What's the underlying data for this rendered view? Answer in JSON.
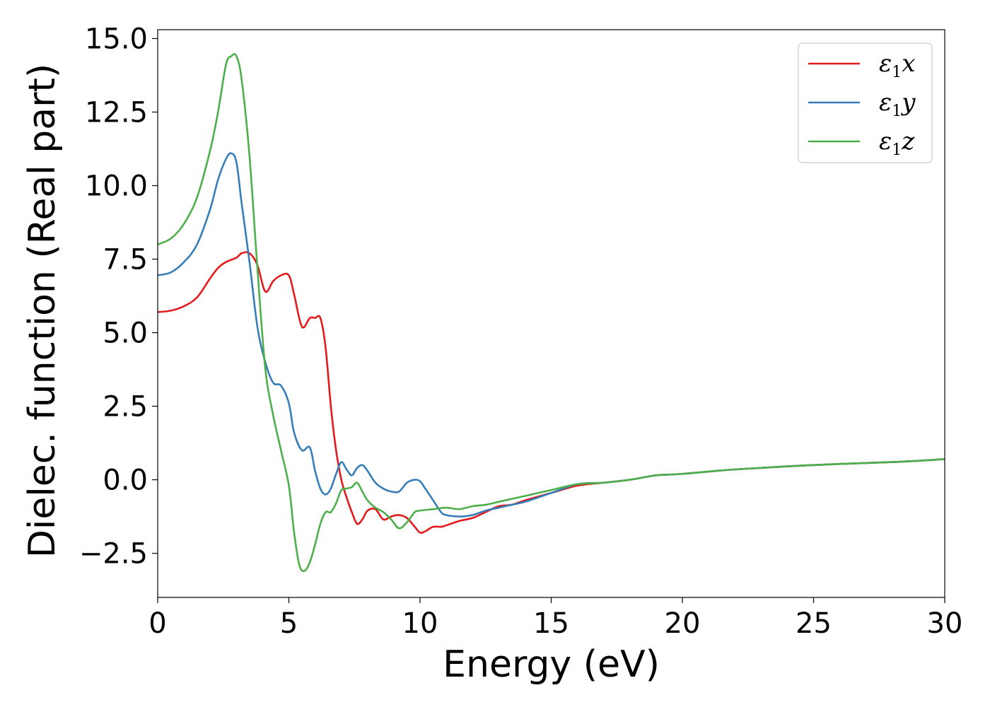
{
  "chart_data": {
    "type": "line",
    "xlabel": "Energy (eV)",
    "ylabel": "Dielec. function (Real part)",
    "xlim": [
      0,
      30
    ],
    "ylim": [
      -4.0,
      15.3
    ],
    "xticks": [
      0,
      5,
      10,
      15,
      20,
      25,
      30
    ],
    "xtick_labels": [
      "0",
      "5",
      "10",
      "15",
      "20",
      "25",
      "30"
    ],
    "yticks": [
      -2.5,
      0.0,
      2.5,
      5.0,
      7.5,
      10.0,
      12.5,
      15.0
    ],
    "ytick_labels": [
      "−2.5",
      "0.0",
      "2.5",
      "5.0",
      "7.5",
      "10.0",
      "12.5",
      "15.0"
    ],
    "grid": false,
    "legend_position": "top-right",
    "series": [
      {
        "name": "ε1x",
        "legend_main": "ε",
        "legend_sub": "1",
        "legend_tail": "x",
        "color": "#e41a1c",
        "x": [
          0,
          0.5,
          1.0,
          1.5,
          2.0,
          2.3,
          2.6,
          3.0,
          3.2,
          3.5,
          3.8,
          4.1,
          4.4,
          4.7,
          5.0,
          5.2,
          5.5,
          5.8,
          6.0,
          6.2,
          6.4,
          6.6,
          6.8,
          7.0,
          7.2,
          7.4,
          7.6,
          7.8,
          8.0,
          8.3,
          8.6,
          8.9,
          9.2,
          9.5,
          9.8,
          10.0,
          10.2,
          10.5,
          10.8,
          11.0,
          11.5,
          12.0,
          12.5,
          13.0,
          13.5,
          14.0,
          15.0,
          16.0,
          17.0,
          18.0,
          19.0,
          20.0,
          22.0,
          25.0,
          28.0,
          30.0
        ],
        "y": [
          5.7,
          5.75,
          5.9,
          6.2,
          6.85,
          7.2,
          7.4,
          7.55,
          7.7,
          7.7,
          7.3,
          6.4,
          6.75,
          6.95,
          6.95,
          6.3,
          5.2,
          5.5,
          5.5,
          5.5,
          4.5,
          2.5,
          1.0,
          0.0,
          -0.6,
          -1.1,
          -1.5,
          -1.35,
          -1.05,
          -1.0,
          -1.35,
          -1.25,
          -1.2,
          -1.3,
          -1.6,
          -1.8,
          -1.75,
          -1.6,
          -1.6,
          -1.55,
          -1.4,
          -1.3,
          -1.1,
          -0.9,
          -0.85,
          -0.7,
          -0.45,
          -0.2,
          -0.1,
          0.0,
          0.15,
          0.2,
          0.35,
          0.5,
          0.6,
          0.7
        ]
      },
      {
        "name": "ε1y",
        "legend_main": "ε",
        "legend_sub": "1",
        "legend_tail": "y",
        "color": "#377eb8",
        "x": [
          0,
          0.5,
          1.0,
          1.5,
          2.0,
          2.3,
          2.6,
          2.8,
          3.0,
          3.2,
          3.5,
          3.8,
          4.1,
          4.4,
          4.7,
          5.0,
          5.2,
          5.5,
          5.8,
          6.0,
          6.2,
          6.4,
          6.6,
          6.8,
          7.0,
          7.2,
          7.4,
          7.6,
          7.8,
          8.0,
          8.3,
          8.6,
          8.9,
          9.2,
          9.5,
          9.8,
          10.0,
          10.2,
          10.5,
          10.8,
          11.0,
          11.5,
          12.0,
          12.5,
          13.0,
          13.5,
          14.0,
          15.0,
          16.0,
          17.0,
          18.0,
          19.0,
          20.0,
          22.0,
          25.0,
          28.0,
          30.0
        ],
        "y": [
          6.95,
          7.05,
          7.4,
          8.0,
          9.2,
          10.2,
          10.9,
          11.1,
          10.8,
          9.4,
          7.4,
          5.2,
          4.0,
          3.3,
          3.2,
          2.6,
          1.6,
          1.0,
          1.1,
          0.3,
          -0.3,
          -0.5,
          -0.3,
          0.2,
          0.6,
          0.35,
          0.15,
          0.4,
          0.5,
          0.3,
          -0.1,
          -0.3,
          -0.4,
          -0.4,
          -0.1,
          0.0,
          -0.05,
          -0.3,
          -0.7,
          -1.1,
          -1.2,
          -1.25,
          -1.2,
          -1.05,
          -0.95,
          -0.85,
          -0.75,
          -0.45,
          -0.15,
          -0.1,
          0.0,
          0.15,
          0.2,
          0.35,
          0.5,
          0.6,
          0.7
        ]
      },
      {
        "name": "ε1z",
        "legend_main": "ε",
        "legend_sub": "1",
        "legend_tail": "z",
        "color": "#4daf4a",
        "x": [
          0,
          0.5,
          1.0,
          1.5,
          2.0,
          2.3,
          2.6,
          2.8,
          3.0,
          3.2,
          3.5,
          3.8,
          4.1,
          4.4,
          4.7,
          5.0,
          5.2,
          5.4,
          5.6,
          5.8,
          6.0,
          6.2,
          6.4,
          6.6,
          6.8,
          7.0,
          7.2,
          7.4,
          7.6,
          7.8,
          8.0,
          8.3,
          8.6,
          8.9,
          9.2,
          9.5,
          9.8,
          10.0,
          10.5,
          11.0,
          11.5,
          12.0,
          12.5,
          13.0,
          13.5,
          14.0,
          15.0,
          16.0,
          17.0,
          18.0,
          19.0,
          20.0,
          22.0,
          25.0,
          28.0,
          30.0
        ],
        "y": [
          8.0,
          8.2,
          8.7,
          9.6,
          11.2,
          12.5,
          14.1,
          14.4,
          14.4,
          13.6,
          11.0,
          7.2,
          3.8,
          2.2,
          1.0,
          -0.2,
          -1.8,
          -2.9,
          -3.1,
          -2.8,
          -2.2,
          -1.5,
          -1.1,
          -1.1,
          -0.8,
          -0.35,
          -0.3,
          -0.25,
          -0.1,
          -0.4,
          -0.7,
          -0.95,
          -1.1,
          -1.35,
          -1.65,
          -1.45,
          -1.1,
          -1.05,
          -1.0,
          -0.95,
          -1.0,
          -0.9,
          -0.85,
          -0.75,
          -0.65,
          -0.55,
          -0.35,
          -0.15,
          -0.1,
          0.0,
          0.15,
          0.2,
          0.35,
          0.5,
          0.6,
          0.7
        ]
      }
    ]
  }
}
